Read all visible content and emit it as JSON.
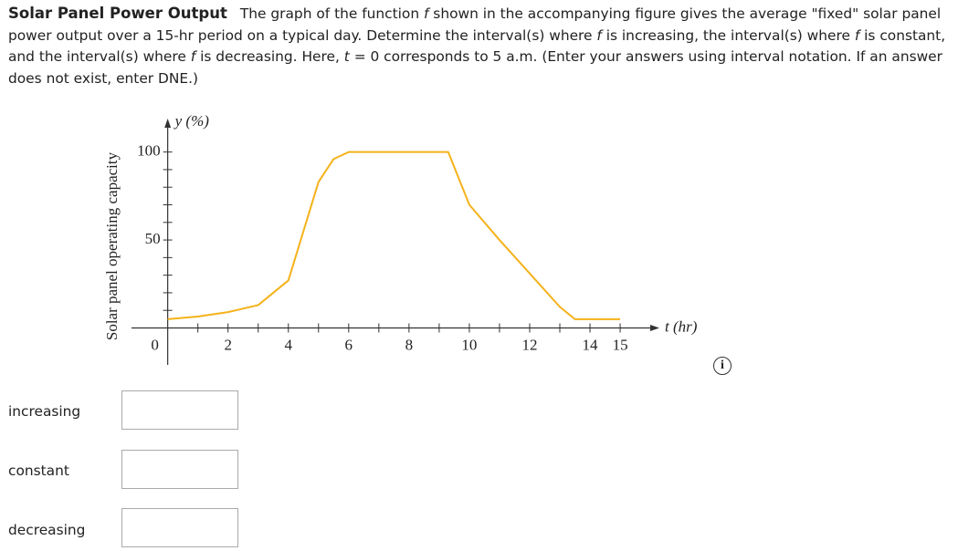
{
  "problem": {
    "title": "Solar Panel Power Output",
    "parts": [
      "The graph of the function ",
      "f",
      " shown in the accompanying figure gives the average \"fixed\" solar panel power output over a 15-hr period on a typical day. Determine the interval(s) where ",
      "f",
      " is increasing, the interval(s) where ",
      "f",
      " is constant, and the interval(s) where ",
      "f",
      " is decreasing. Here, ",
      "t",
      " = 0 corresponds to 5 a.m. (Enter your answers using interval notation. If an answer does not exist, enter DNE.)"
    ]
  },
  "chart_data": {
    "type": "line",
    "y_label": "y (%)",
    "x_label": "t (hr)",
    "y_title": "Solar panel operating capacity",
    "origin_label": "0",
    "x": [
      0,
      1,
      2,
      3,
      4,
      4.5,
      5,
      5.5,
      6,
      7,
      8,
      9,
      9.3,
      10,
      11,
      12,
      13,
      13.5,
      14,
      15
    ],
    "series": [
      {
        "color": "#f5b21a",
        "values": [
          5,
          6.5,
          9,
          13,
          27,
          55,
          83,
          96,
          100,
          100,
          100,
          100,
          100,
          70,
          50,
          31,
          12,
          5,
          5,
          5
        ]
      }
    ],
    "xlim": [
      -1.2,
      16.3
    ],
    "ylim": [
      -21,
      119
    ],
    "xticks": [
      2,
      4,
      6,
      8,
      10,
      12,
      14,
      15
    ],
    "xminorticks": [
      1,
      3,
      5,
      7,
      9,
      11,
      13
    ],
    "yticks": [
      50,
      100
    ],
    "yminorticks": [
      10,
      20,
      30,
      40,
      60,
      70,
      80,
      90
    ]
  },
  "answers": [
    "increasing",
    "constant",
    "decreasing"
  ]
}
